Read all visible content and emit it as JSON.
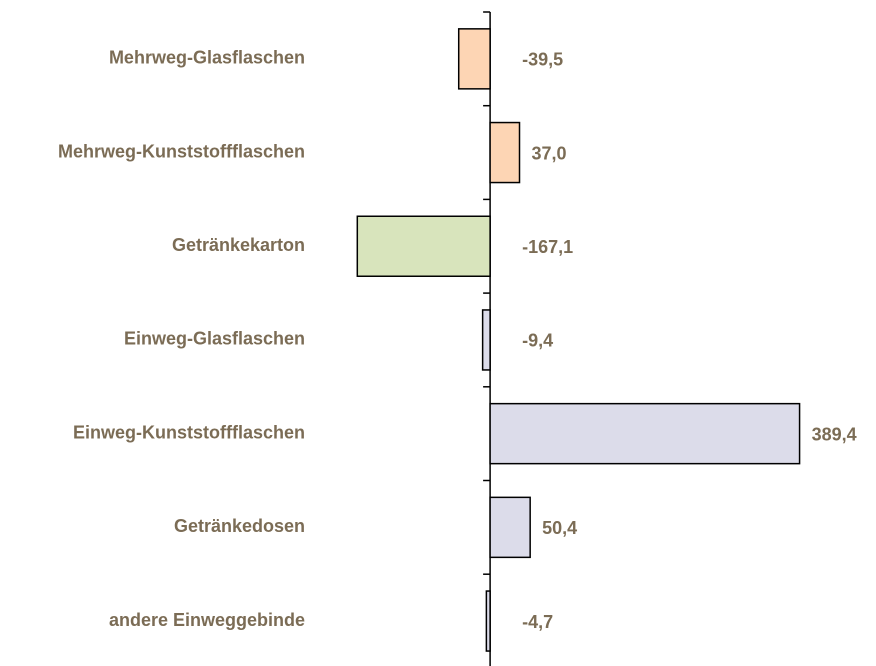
{
  "chart_data": {
    "type": "bar",
    "orientation": "horizontal",
    "categories": [
      "Mehrweg-Glasflaschen",
      "Mehrweg-Kunststoffflaschen",
      "Getränkekarton",
      "Einweg-Glasflaschen",
      "Einweg-Kunststoffflaschen",
      "Getränkedosen",
      "andere Einweggebinde"
    ],
    "values": [
      -39.5,
      37.0,
      -167.1,
      -9.4,
      389.4,
      50.4,
      -4.7
    ],
    "value_labels": [
      "-39,5",
      "37,0",
      "-167,1",
      "-9,4",
      "389,4",
      "50,4",
      "-4,7"
    ],
    "colors": [
      "#fdd5b4",
      "#fdd5b4",
      "#d8e4bc",
      "#dcdcea",
      "#dcdcea",
      "#dcdcea",
      "#dcdcea"
    ],
    "xlim": [
      -170,
      400
    ]
  }
}
